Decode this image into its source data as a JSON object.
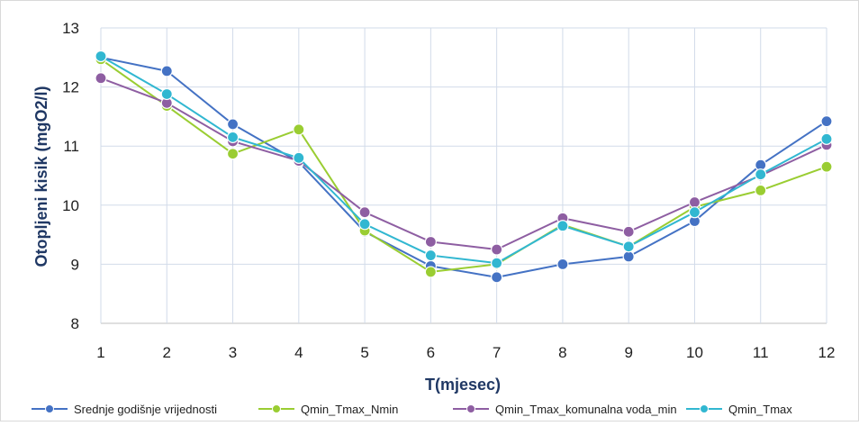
{
  "colors": {
    "grid": "#d2dbe9",
    "axis": "#bfbfbf",
    "title_text": "#203864"
  },
  "chart_data": {
    "type": "line",
    "xlabel": "T(mjesec)",
    "ylabel": "Otopljeni kisik (mgO2/l)",
    "x": [
      1,
      2,
      3,
      4,
      5,
      6,
      7,
      8,
      9,
      10,
      11,
      12
    ],
    "xlim": [
      1,
      12
    ],
    "ylim": [
      8,
      13
    ],
    "yticks": [
      8,
      9,
      10,
      11,
      12,
      13
    ],
    "grid": true,
    "legend_position": "bottom",
    "series": [
      {
        "name": "Srednje godišnje vrijednosti",
        "color": "#4472c4",
        "values": [
          12.5,
          12.27,
          11.37,
          10.73,
          9.55,
          8.97,
          8.78,
          9.0,
          9.13,
          9.73,
          10.68,
          11.42
        ]
      },
      {
        "name": "Qmin_Tmax_Nmin",
        "color": "#9acd32",
        "values": [
          12.47,
          11.68,
          10.87,
          11.28,
          9.57,
          8.87,
          9.0,
          9.67,
          9.3,
          9.97,
          10.25,
          10.65
        ]
      },
      {
        "name": "Qmin_Tmax_komunalna voda_min",
        "color": "#8e5ea2",
        "values": [
          12.15,
          11.73,
          11.08,
          10.75,
          9.88,
          9.38,
          9.25,
          9.78,
          9.55,
          10.05,
          10.5,
          11.02
        ]
      },
      {
        "name": "Qmin_Tmax",
        "color": "#31b7d1",
        "values": [
          12.52,
          11.88,
          11.15,
          10.8,
          9.68,
          9.15,
          9.02,
          9.65,
          9.3,
          9.88,
          10.52,
          11.12
        ]
      }
    ]
  }
}
